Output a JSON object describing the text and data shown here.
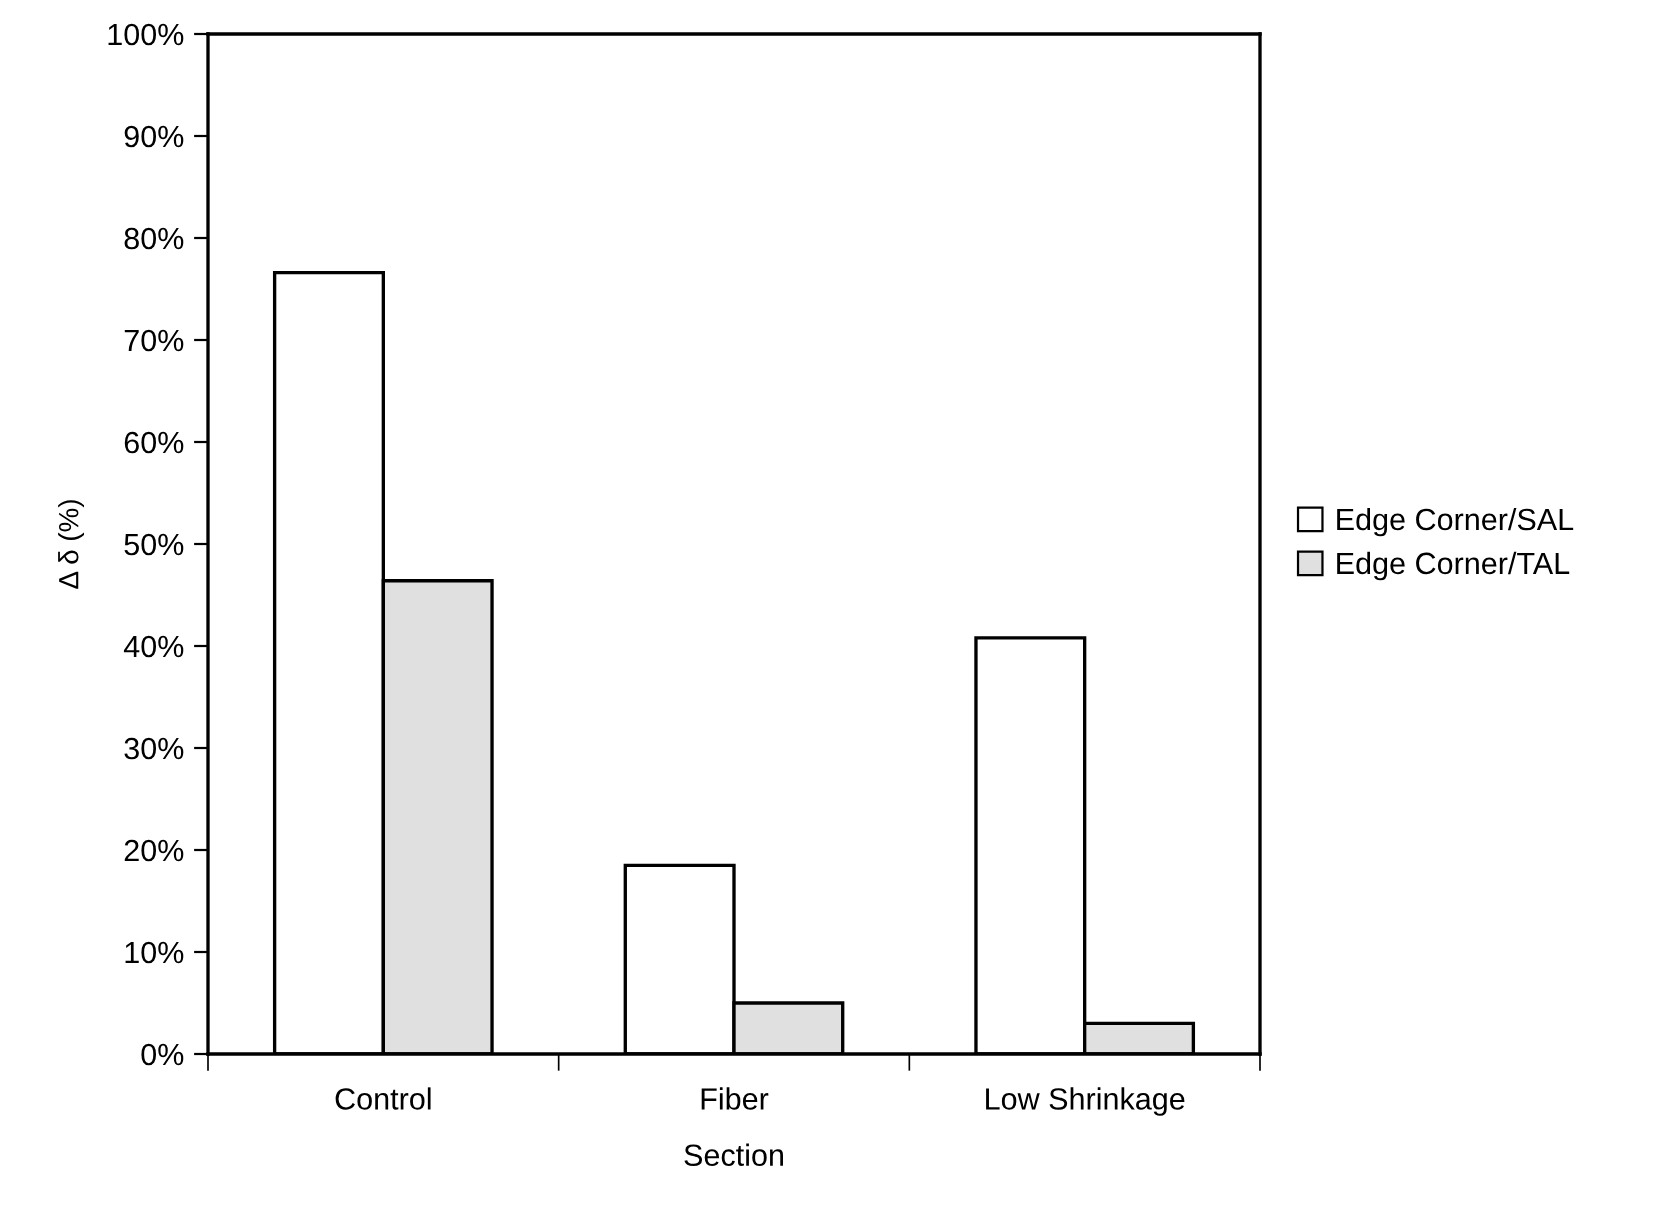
{
  "chart_data": {
    "type": "bar",
    "xlabel": "Section",
    "ylabel": "Δ δ (%)",
    "categories": [
      "Control",
      "Fiber",
      "Low Shrinkage"
    ],
    "series": [
      {
        "name": "Edge Corner/SAL",
        "color": "#ffffff",
        "values": [
          76.6,
          18.5,
          40.8
        ]
      },
      {
        "name": "Edge Corner/TAL",
        "color": "#e0e0e0",
        "values": [
          46.4,
          5.0,
          3.0
        ]
      }
    ],
    "ylim": [
      0,
      100
    ],
    "yticks": [
      {
        "value": 0,
        "label": "0%"
      },
      {
        "value": 10,
        "label": "10%"
      },
      {
        "value": 20,
        "label": "20%"
      },
      {
        "value": 30,
        "label": "30%"
      },
      {
        "value": 40,
        "label": "40%"
      },
      {
        "value": 50,
        "label": "50%"
      },
      {
        "value": 60,
        "label": "60%"
      },
      {
        "value": 70,
        "label": "70%"
      },
      {
        "value": 80,
        "label": "80%"
      },
      {
        "value": 90,
        "label": "90%"
      },
      {
        "value": 100,
        "label": "100%"
      }
    ],
    "grid": false,
    "legend": "right"
  }
}
